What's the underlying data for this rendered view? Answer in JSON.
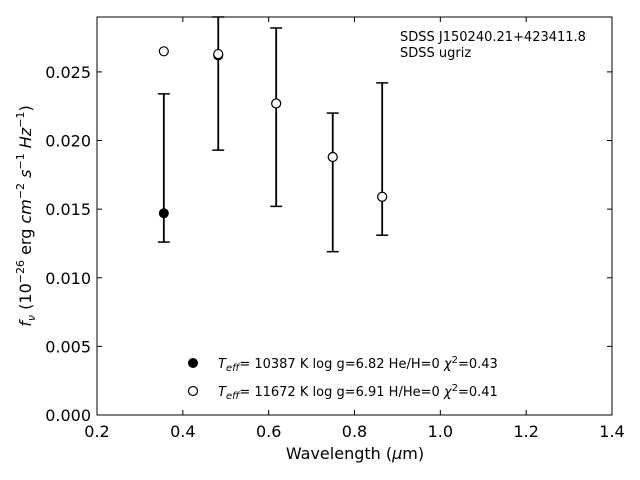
{
  "chart_data": {
    "type": "scatter",
    "title": "",
    "xlabel": "Wavelength (μm)",
    "ylabel": "f_ν (10^-26 erg cm^-2 s^-1 Hz^-1)",
    "xlim": [
      0.2,
      1.4
    ],
    "ylim": [
      0.0,
      0.029
    ],
    "x_ticks": [
      0.2,
      0.4,
      0.6,
      0.8,
      1.0,
      1.2,
      1.4
    ],
    "x_tick_labels": [
      "0.2",
      "0.4",
      "0.6",
      "0.8",
      "1.0",
      "1.2",
      "1.4"
    ],
    "y_ticks": [
      0.0,
      0.005,
      0.01,
      0.015,
      0.02,
      0.025
    ],
    "y_tick_labels": [
      "0.000",
      "0.005",
      "0.010",
      "0.015",
      "0.020",
      "0.025"
    ],
    "grid": false,
    "legend_position": "bottom-center",
    "annotation": [
      "SDSS J150240.21+423411.8",
      "SDSS ugriz"
    ],
    "series": [
      {
        "name": "T_eff= 10387 K  log g=6.82  He/H=0  χ²=0.43",
        "marker": "filled-circle",
        "color": "#000000",
        "x": [
          0.3557,
          0.4825,
          0.6175,
          0.7493,
          0.8645
        ],
        "y": [
          0.0147,
          0.0262,
          0.0227,
          0.0188,
          0.0159
        ]
      },
      {
        "name": "T_eff= 11672 K  log g=6.91  H/He=0  χ²=0.41",
        "marker": "open-circle",
        "color": "#000000",
        "x": [
          0.3557,
          0.4825,
          0.6175,
          0.7493,
          0.8645
        ],
        "y": [
          0.0265,
          0.0263,
          0.0227,
          0.0188,
          0.0159
        ]
      }
    ],
    "observations": {
      "name": "SDSS ugriz",
      "x": [
        0.3557,
        0.4825,
        0.6175,
        0.7493,
        0.8645
      ],
      "y_low": [
        0.0126,
        0.0193,
        0.0152,
        0.0119,
        0.0131
      ],
      "y_high": [
        0.0234,
        0.029,
        0.0282,
        0.022,
        0.0242
      ]
    }
  }
}
